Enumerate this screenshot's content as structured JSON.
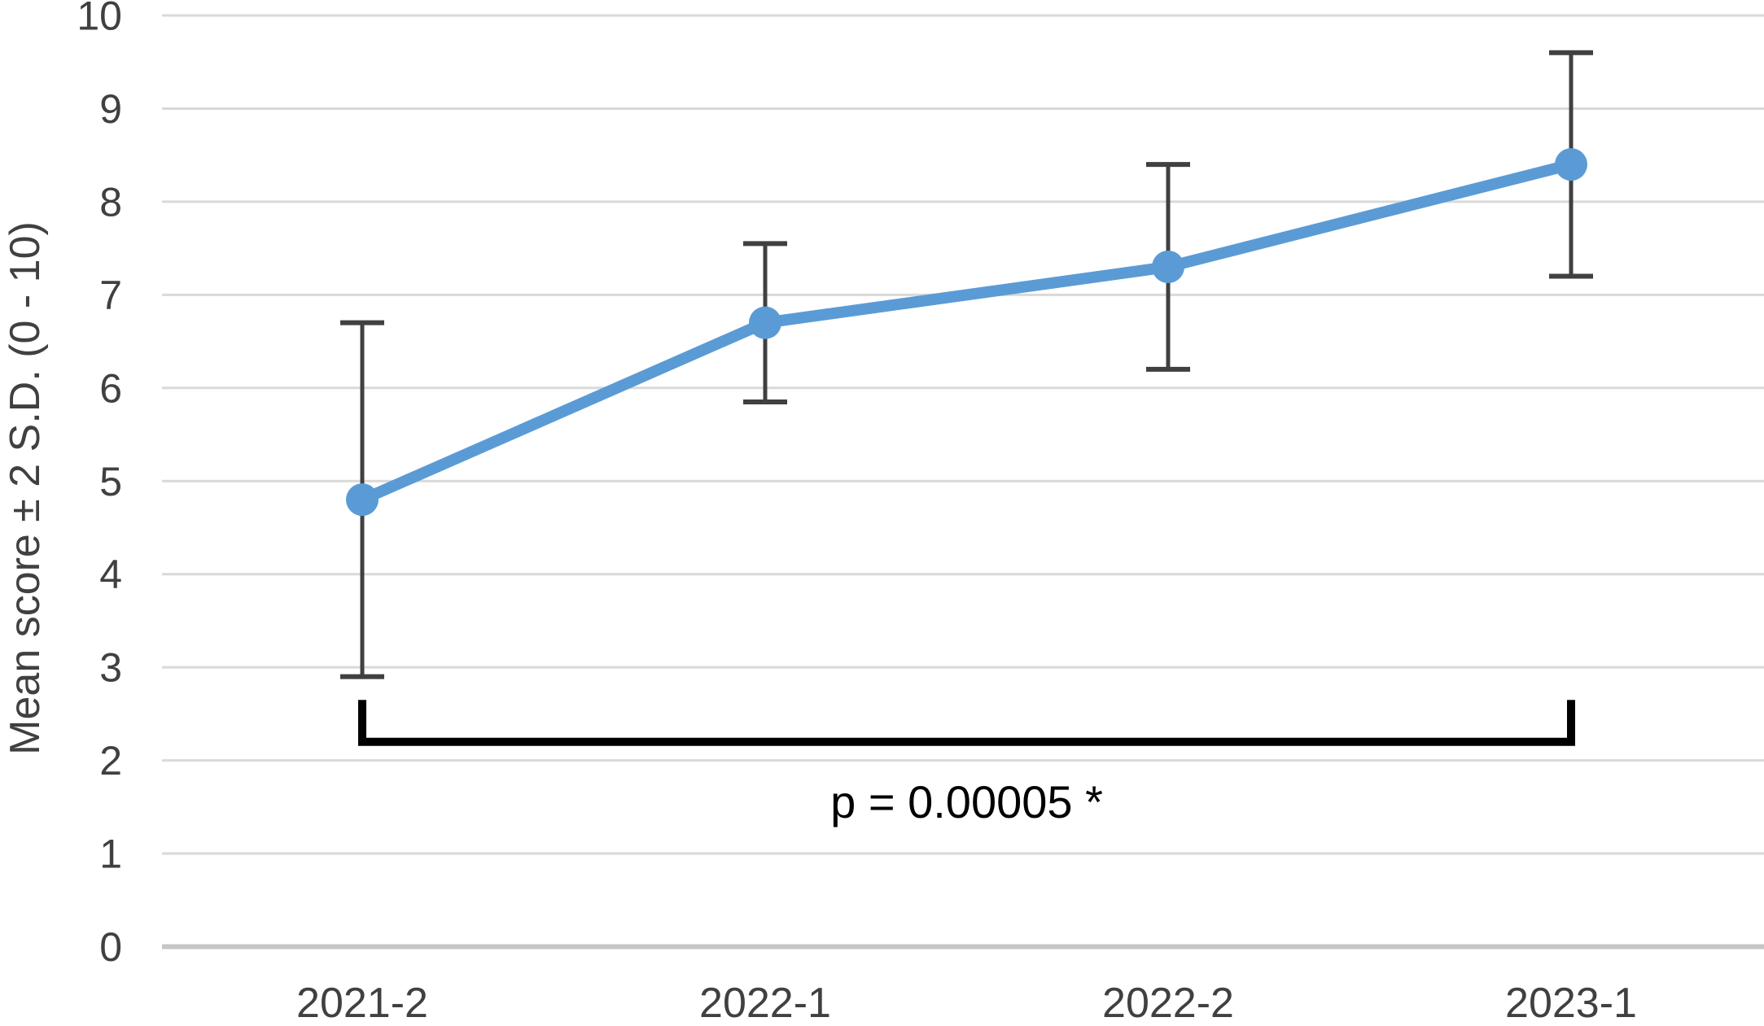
{
  "chart_data": {
    "type": "line",
    "title": "",
    "xlabel": "",
    "ylabel": "Mean score ± 2 S.D. (0 - 10)",
    "categories": [
      "2021-2",
      "2022-1",
      "2022-2",
      "2023-1"
    ],
    "series": [
      {
        "name": "Mean score",
        "values": [
          4.8,
          6.7,
          7.3,
          8.4
        ],
        "error_low": [
          2.9,
          5.85,
          6.2,
          7.2
        ],
        "error_high": [
          6.7,
          7.55,
          8.4,
          9.6
        ]
      }
    ],
    "ylim": [
      0,
      10
    ],
    "ytick_step": 1,
    "ytick_labels": [
      "0",
      "1",
      "2",
      "3",
      "4",
      "5",
      "6",
      "7",
      "8",
      "9",
      "10"
    ],
    "grid": true,
    "legend": false,
    "annotation": {
      "type": "significance-bracket",
      "from_category": "2021-2",
      "to_category": "2023-1",
      "bar_value": 2.2,
      "tick_top_value": 2.65,
      "label": "p = 0.00005 *"
    },
    "colors": {
      "series": "#5B9BD5",
      "error_bar": "#404040",
      "gridline": "#D9D9D9",
      "axis_line": "#C6C6C6",
      "tick_label": "#404040",
      "axis_title": "#404040",
      "annotation": "#000000",
      "background": "#FFFFFF"
    }
  }
}
